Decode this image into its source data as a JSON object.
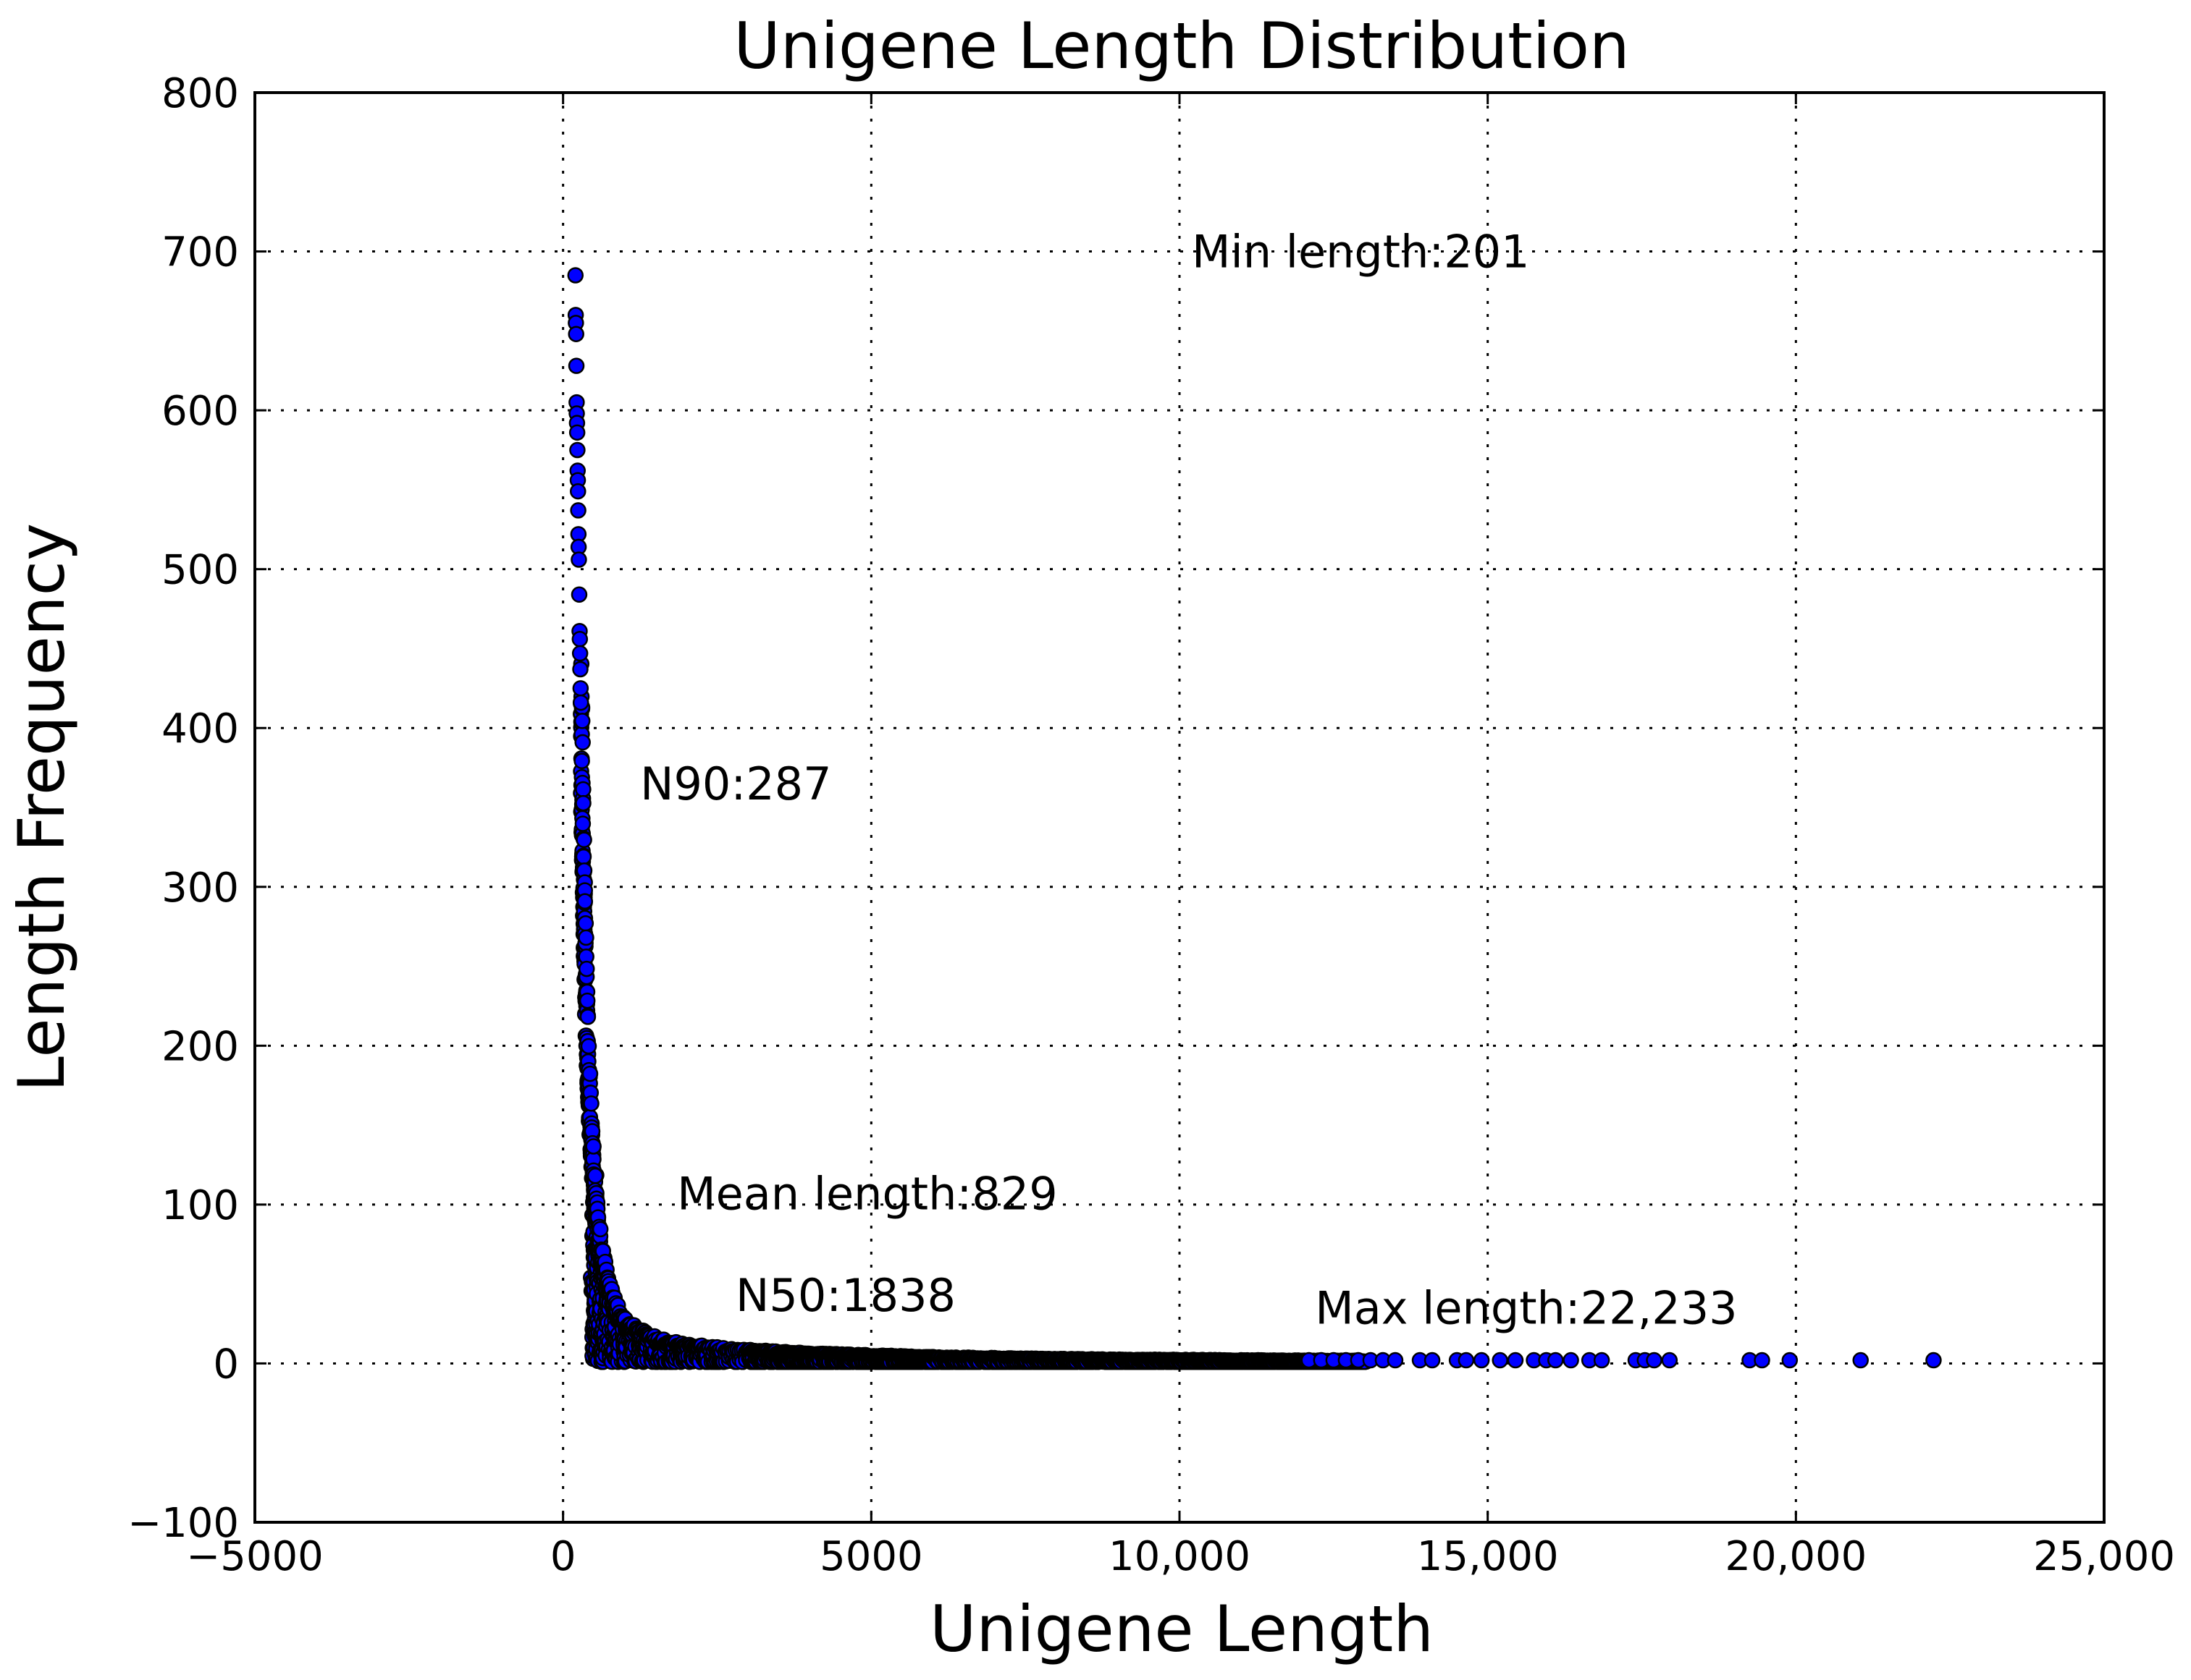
{
  "chart_data": {
    "type": "scatter",
    "title": "Unigene Length Distribution",
    "xlabel": "Unigene Length",
    "ylabel": "Length Frequency",
    "xlim": [
      -5000,
      25000
    ],
    "ylim": [
      -100,
      800
    ],
    "grid": true,
    "marker_color": "#0000ff",
    "x_ticks": [
      -5000,
      0,
      5000,
      10000,
      15000,
      20000,
      25000
    ],
    "x_tick_labels": [
      "−5000",
      "0",
      "5000",
      "10,000",
      "15,000",
      "20,000",
      "25,000"
    ],
    "y_ticks": [
      -100,
      0,
      100,
      200,
      300,
      400,
      500,
      600,
      700,
      800
    ],
    "y_tick_labels": [
      "−100",
      "0",
      "100",
      "200",
      "300",
      "400",
      "500",
      "600",
      "700",
      "800"
    ],
    "annotations": [
      {
        "text": "Min length:201",
        "x": 10200,
        "y": 700
      },
      {
        "text": "N90:287",
        "x": 1250,
        "y": 365
      },
      {
        "text": "Mean length:829",
        "x": 1850,
        "y": 107
      },
      {
        "text": "N50:1838",
        "x": 2800,
        "y": 43
      },
      {
        "text": "Max length:22,233",
        "x": 12200,
        "y": 35
      }
    ],
    "peak_points": [
      {
        "x": 201,
        "y": 685
      },
      {
        "x": 205,
        "y": 660
      },
      {
        "x": 208,
        "y": 655
      },
      {
        "x": 212,
        "y": 648
      },
      {
        "x": 216,
        "y": 628
      },
      {
        "x": 220,
        "y": 605
      },
      {
        "x": 222,
        "y": 598
      },
      {
        "x": 226,
        "y": 592
      },
      {
        "x": 229,
        "y": 586
      },
      {
        "x": 232,
        "y": 575
      },
      {
        "x": 236,
        "y": 562
      },
      {
        "x": 239,
        "y": 556
      },
      {
        "x": 242,
        "y": 549
      },
      {
        "x": 246,
        "y": 537
      },
      {
        "x": 249,
        "y": 522
      },
      {
        "x": 252,
        "y": 514
      },
      {
        "x": 256,
        "y": 506
      },
      {
        "x": 262,
        "y": 484
      },
      {
        "x": 268,
        "y": 461
      },
      {
        "x": 272,
        "y": 456
      },
      {
        "x": 276,
        "y": 447
      },
      {
        "x": 280,
        "y": 437
      },
      {
        "x": 284,
        "y": 425
      },
      {
        "x": 288,
        "y": 416
      }
    ],
    "decay_curve": [
      [
        290,
        410
      ],
      [
        300,
        385
      ],
      [
        310,
        360
      ],
      [
        320,
        335
      ],
      [
        330,
        310
      ],
      [
        340,
        290
      ],
      [
        350,
        270
      ],
      [
        360,
        252
      ],
      [
        375,
        232
      ],
      [
        390,
        212
      ],
      [
        405,
        195
      ],
      [
        420,
        178
      ],
      [
        440,
        160
      ],
      [
        460,
        143
      ],
      [
        480,
        128
      ],
      [
        500,
        116
      ],
      [
        525,
        103
      ],
      [
        550,
        92
      ],
      [
        580,
        82
      ],
      [
        610,
        72
      ],
      [
        650,
        62
      ],
      [
        700,
        53
      ],
      [
        760,
        44
      ],
      [
        830,
        37
      ],
      [
        900,
        31
      ],
      [
        1000,
        26
      ],
      [
        1100,
        22
      ],
      [
        1250,
        19
      ],
      [
        1400,
        16
      ],
      [
        1600,
        14
      ],
      [
        1800,
        12
      ],
      [
        2000,
        11
      ],
      [
        2300,
        9.5
      ],
      [
        2600,
        8.5
      ],
      [
        3000,
        7.5
      ],
      [
        3500,
        6.5
      ],
      [
        4000,
        5.5
      ],
      [
        4500,
        5
      ],
      [
        5000,
        4.5
      ],
      [
        5500,
        4
      ],
      [
        6000,
        3.5
      ],
      [
        7000,
        3
      ],
      [
        8000,
        2.5
      ],
      [
        9000,
        2.2
      ],
      [
        10000,
        2
      ],
      [
        11000,
        1.8
      ],
      [
        12000,
        1.6
      ],
      [
        13000,
        1.5
      ]
    ],
    "tail_points": [
      {
        "x": 12100,
        "y": 2
      },
      {
        "x": 12300,
        "y": 2
      },
      {
        "x": 12500,
        "y": 2
      },
      {
        "x": 12700,
        "y": 2
      },
      {
        "x": 12900,
        "y": 2
      },
      {
        "x": 13100,
        "y": 2
      },
      {
        "x": 13300,
        "y": 2
      },
      {
        "x": 13500,
        "y": 2
      },
      {
        "x": 13900,
        "y": 2
      },
      {
        "x": 14100,
        "y": 2
      },
      {
        "x": 14500,
        "y": 2
      },
      {
        "x": 14650,
        "y": 2
      },
      {
        "x": 14900,
        "y": 2
      },
      {
        "x": 15200,
        "y": 2
      },
      {
        "x": 15450,
        "y": 2
      },
      {
        "x": 15750,
        "y": 2
      },
      {
        "x": 15950,
        "y": 2
      },
      {
        "x": 16100,
        "y": 2
      },
      {
        "x": 16350,
        "y": 2
      },
      {
        "x": 16650,
        "y": 2
      },
      {
        "x": 16850,
        "y": 2
      },
      {
        "x": 17400,
        "y": 2
      },
      {
        "x": 17550,
        "y": 2
      },
      {
        "x": 17700,
        "y": 2
      },
      {
        "x": 17950,
        "y": 2
      },
      {
        "x": 19250,
        "y": 2
      },
      {
        "x": 19450,
        "y": 2
      },
      {
        "x": 19900,
        "y": 2
      },
      {
        "x": 21050,
        "y": 2
      },
      {
        "x": 22233,
        "y": 2
      }
    ]
  }
}
